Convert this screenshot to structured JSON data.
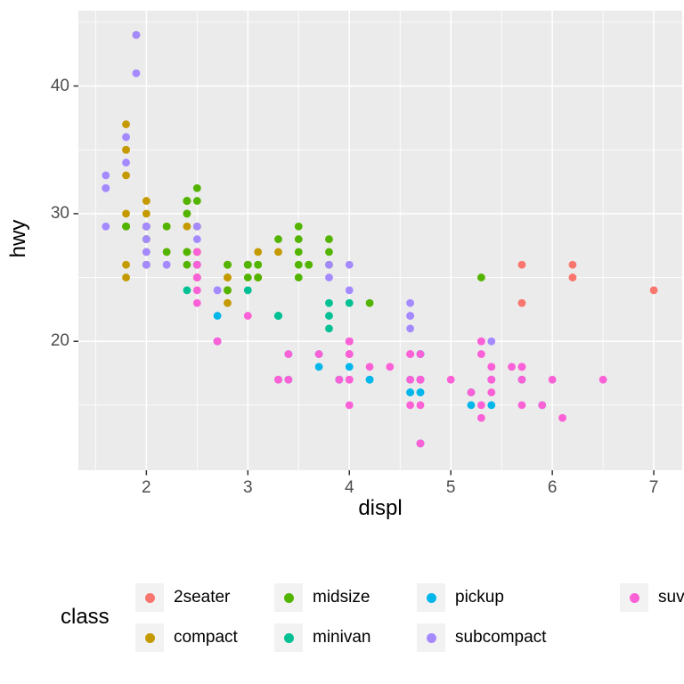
{
  "chart_data": {
    "type": "scatter",
    "title": "",
    "xlabel": "displ",
    "ylabel": "hwy",
    "xlim": [
      1.33,
      7.28
    ],
    "ylim": [
      9.9,
      45.9
    ],
    "x_ticks": [
      2,
      3,
      4,
      5,
      6,
      7
    ],
    "y_ticks": [
      20,
      30,
      40
    ],
    "x_minor": [
      1.5,
      2.5,
      3.5,
      4.5,
      5.5,
      6.5
    ],
    "y_minor": [
      15,
      25,
      35,
      45
    ],
    "grid": "white major and minor gridlines on gray panel",
    "legend_position": "bottom",
    "point_radius": 4.4,
    "series": [
      {
        "name": "2seater",
        "color": "#F8766D",
        "points": [
          [
            5.7,
            26
          ],
          [
            5.7,
            23
          ],
          [
            6.2,
            26
          ],
          [
            6.2,
            25
          ],
          [
            7,
            24
          ]
        ]
      },
      {
        "name": "compact",
        "color": "#C49A00",
        "points": [
          [
            1.8,
            29
          ],
          [
            1.8,
            29
          ],
          [
            2,
            31
          ],
          [
            2,
            30
          ],
          [
            2.8,
            26
          ],
          [
            2.8,
            26
          ],
          [
            3.1,
            27
          ],
          [
            1.8,
            26
          ],
          [
            1.8,
            25
          ],
          [
            2,
            28
          ],
          [
            2,
            27
          ],
          [
            2.8,
            25
          ],
          [
            2.8,
            25
          ],
          [
            3.1,
            25
          ],
          [
            3.1,
            25
          ],
          [
            2.4,
            29
          ],
          [
            2.4,
            27
          ],
          [
            2.5,
            25
          ],
          [
            2.5,
            27
          ],
          [
            2.5,
            25
          ],
          [
            2.5,
            27
          ],
          [
            2.2,
            27
          ],
          [
            2.2,
            29
          ],
          [
            2.4,
            31
          ],
          [
            2.4,
            31
          ],
          [
            3,
            26
          ],
          [
            3.3,
            27
          ],
          [
            1.8,
            30
          ],
          [
            1.8,
            33
          ],
          [
            1.8,
            35
          ],
          [
            1.8,
            37
          ],
          [
            1.8,
            35
          ],
          [
            2,
            29
          ],
          [
            2,
            26
          ],
          [
            2,
            29
          ],
          [
            2,
            29
          ],
          [
            2.8,
            24
          ],
          [
            1.9,
            44
          ],
          [
            2,
            29
          ],
          [
            2,
            26
          ],
          [
            2,
            29
          ],
          [
            2,
            29
          ],
          [
            2.5,
            29
          ],
          [
            2.5,
            29
          ],
          [
            2.8,
            23
          ],
          [
            2.8,
            24
          ]
        ]
      },
      {
        "name": "midsize",
        "color": "#53B400",
        "points": [
          [
            2.8,
            24
          ],
          [
            3.1,
            25
          ],
          [
            4.2,
            23
          ],
          [
            2.4,
            27
          ],
          [
            2.4,
            30
          ],
          [
            3.1,
            26
          ],
          [
            3.5,
            29
          ],
          [
            3.6,
            26
          ],
          [
            2.4,
            26
          ],
          [
            2.4,
            27
          ],
          [
            2.4,
            30
          ],
          [
            2.4,
            31
          ],
          [
            2.5,
            26
          ],
          [
            2.5,
            26
          ],
          [
            3.3,
            28
          ],
          [
            2.5,
            31
          ],
          [
            2.5,
            32
          ],
          [
            3.5,
            27
          ],
          [
            3.5,
            26
          ],
          [
            3,
            26
          ],
          [
            3,
            25
          ],
          [
            3.5,
            25
          ],
          [
            3.1,
            26
          ],
          [
            3.8,
            26
          ],
          [
            3.8,
            27
          ],
          [
            3.8,
            28
          ],
          [
            5.3,
            25
          ],
          [
            2.2,
            29
          ],
          [
            2.2,
            27
          ],
          [
            2.4,
            31
          ],
          [
            2.4,
            31
          ],
          [
            3,
            26
          ],
          [
            3,
            26
          ],
          [
            3.5,
            28
          ],
          [
            1.8,
            29
          ],
          [
            1.8,
            29
          ],
          [
            2,
            28
          ],
          [
            2,
            29
          ],
          [
            2.8,
            26
          ],
          [
            2.8,
            26
          ],
          [
            3.6,
            26
          ]
        ]
      },
      {
        "name": "minivan",
        "color": "#00C094",
        "points": [
          [
            2.4,
            24
          ],
          [
            3,
            24
          ],
          [
            3.3,
            22
          ],
          [
            3.3,
            22
          ],
          [
            3.3,
            22
          ],
          [
            3.3,
            22
          ],
          [
            3.3,
            17
          ],
          [
            3.8,
            22
          ],
          [
            3.8,
            21
          ],
          [
            3.8,
            23
          ],
          [
            4,
            23
          ]
        ]
      },
      {
        "name": "pickup",
        "color": "#00B6EB",
        "points": [
          [
            3.7,
            19
          ],
          [
            3.7,
            18
          ],
          [
            3.9,
            17
          ],
          [
            3.9,
            17
          ],
          [
            4.7,
            19
          ],
          [
            4.7,
            19
          ],
          [
            4.7,
            12
          ],
          [
            4.7,
            17
          ],
          [
            4.7,
            16
          ],
          [
            4.7,
            12
          ],
          [
            4.7,
            17
          ],
          [
            4.7,
            17
          ],
          [
            4.7,
            16
          ],
          [
            5.2,
            15
          ],
          [
            5.2,
            16
          ],
          [
            5.7,
            17
          ],
          [
            5.9,
            15
          ],
          [
            4.2,
            17
          ],
          [
            4.2,
            17
          ],
          [
            4.6,
            16
          ],
          [
            4.6,
            16
          ],
          [
            4.6,
            17
          ],
          [
            5.4,
            15
          ],
          [
            5.4,
            17
          ],
          [
            2.7,
            20
          ],
          [
            2.7,
            20
          ],
          [
            2.7,
            22
          ],
          [
            3.4,
            17
          ],
          [
            3.4,
            19
          ],
          [
            4,
            18
          ],
          [
            4,
            20
          ]
        ]
      },
      {
        "name": "subcompact",
        "color": "#A58AFF",
        "points": [
          [
            3.8,
            26
          ],
          [
            3.8,
            25
          ],
          [
            4,
            26
          ],
          [
            4,
            24
          ],
          [
            4.6,
            21
          ],
          [
            4.6,
            22
          ],
          [
            4.6,
            23
          ],
          [
            4.6,
            22
          ],
          [
            5.4,
            20
          ],
          [
            1.6,
            33
          ],
          [
            1.6,
            32
          ],
          [
            1.6,
            32
          ],
          [
            1.6,
            29
          ],
          [
            1.6,
            32
          ],
          [
            1.8,
            34
          ],
          [
            1.8,
            36
          ],
          [
            1.8,
            36
          ],
          [
            2,
            29
          ],
          [
            2,
            26
          ],
          [
            2,
            29
          ],
          [
            2,
            28
          ],
          [
            2,
            27
          ],
          [
            2.7,
            24
          ],
          [
            2.7,
            24
          ],
          [
            2.2,
            26
          ],
          [
            2.2,
            26
          ],
          [
            2.5,
            26
          ],
          [
            2.5,
            26
          ],
          [
            1.9,
            44
          ],
          [
            1.9,
            41
          ],
          [
            2,
            29
          ],
          [
            2,
            26
          ],
          [
            2.5,
            28
          ],
          [
            2.5,
            29
          ]
        ]
      },
      {
        "name": "suv",
        "color": "#FB61D7",
        "points": [
          [
            5.3,
            20
          ],
          [
            5.3,
            15
          ],
          [
            5.3,
            20
          ],
          [
            5.7,
            17
          ],
          [
            6,
            17
          ],
          [
            5.3,
            19
          ],
          [
            5.3,
            14
          ],
          [
            5.7,
            15
          ],
          [
            6.5,
            17
          ],
          [
            3.9,
            17
          ],
          [
            4.7,
            17
          ],
          [
            4.7,
            12
          ],
          [
            4.7,
            17
          ],
          [
            5.2,
            16
          ],
          [
            5.7,
            18
          ],
          [
            5.9,
            15
          ],
          [
            4.6,
            17
          ],
          [
            5.4,
            17
          ],
          [
            5.4,
            18
          ],
          [
            4,
            17
          ],
          [
            4,
            19
          ],
          [
            4,
            17
          ],
          [
            4,
            19
          ],
          [
            4.6,
            19
          ],
          [
            3,
            22
          ],
          [
            3.7,
            19
          ],
          [
            4,
            20
          ],
          [
            4.7,
            17
          ],
          [
            4.7,
            12
          ],
          [
            4.7,
            19
          ],
          [
            5.7,
            18
          ],
          [
            6.1,
            14
          ],
          [
            4,
            15
          ],
          [
            4.2,
            18
          ],
          [
            4.4,
            18
          ],
          [
            4.6,
            15
          ],
          [
            5.4,
            17
          ],
          [
            5.4,
            16
          ],
          [
            5.4,
            18
          ],
          [
            4,
            17
          ],
          [
            4,
            19
          ],
          [
            4.6,
            19
          ],
          [
            5,
            17
          ],
          [
            3.3,
            17
          ],
          [
            3.3,
            17
          ],
          [
            4,
            20
          ],
          [
            5.6,
            18
          ],
          [
            2.5,
            25
          ],
          [
            2.5,
            24
          ],
          [
            2.5,
            27
          ],
          [
            2.5,
            25
          ],
          [
            2.5,
            26
          ],
          [
            2.5,
            23
          ],
          [
            2.7,
            20
          ],
          [
            2.7,
            20
          ],
          [
            3.4,
            19
          ],
          [
            3.4,
            17
          ],
          [
            4,
            20
          ],
          [
            4.7,
            17
          ],
          [
            4.7,
            15
          ],
          [
            5.7,
            18
          ]
        ]
      }
    ]
  },
  "legend": {
    "title": "class",
    "items": [
      {
        "label": "2seater",
        "color": "#F8766D"
      },
      {
        "label": "compact",
        "color": "#C49A00"
      },
      {
        "label": "midsize",
        "color": "#53B400"
      },
      {
        "label": "minivan",
        "color": "#00C094"
      },
      {
        "label": "pickup",
        "color": "#00B6EB"
      },
      {
        "label": "subcompact",
        "color": "#A58AFF"
      },
      {
        "label": "suv",
        "color": "#FB61D7"
      }
    ]
  },
  "colors": {
    "panel_bg": "#EBEBEB",
    "grid": "#FFFFFF",
    "tick_text": "#4D4D4D",
    "tick_mark": "#333333",
    "axis_title": "#000000",
    "legend_key_bg": "#F2F2F2"
  }
}
